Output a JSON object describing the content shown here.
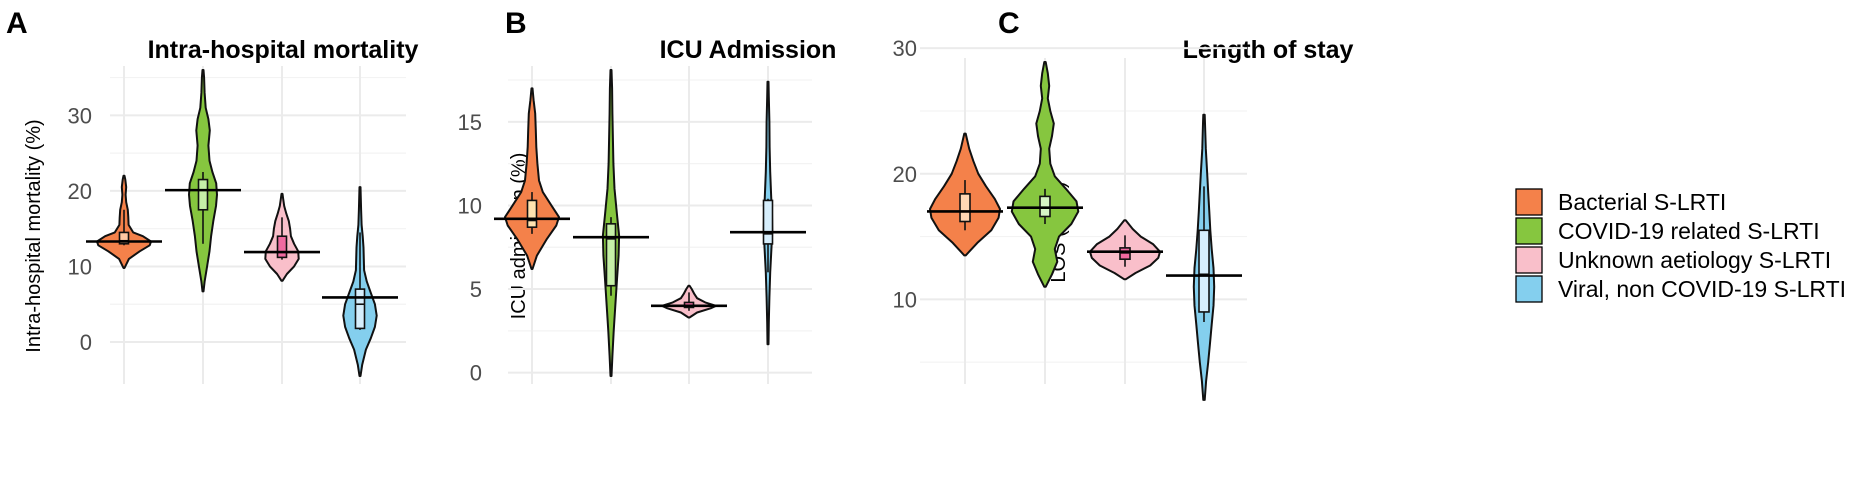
{
  "legend": {
    "items": [
      {
        "label": "Bacterial S-LRTI",
        "color": "#f4814a"
      },
      {
        "label": "COVID-19 related S-LRTI",
        "color": "#86c63f"
      },
      {
        "label": "Unknown aetiology S-LRTI",
        "color": "#f9bfca"
      },
      {
        "label": "Viral, non COVID-19 S-LRTI",
        "color": "#84cfee"
      }
    ]
  },
  "chart_data": [
    {
      "type": "violin",
      "panel_letter": "A",
      "title": "Intra-hospital mortality",
      "xlabel": "",
      "ylabel": "Intra-hospital mortality (%)",
      "ylim": [
        -4.5,
        36
      ],
      "yticks": [
        0,
        10,
        20,
        30
      ],
      "grid": true,
      "series": [
        {
          "name": "Bacterial S-LRTI",
          "color": "#f4814a",
          "inner_color": "#ffc9a3",
          "min": 9.8,
          "max": 22,
          "q1": 13.0,
          "median": 13.4,
          "q3": 14.5,
          "mean": 13.3,
          "whisker": [
            12.8,
            17.5
          ],
          "density": [
            [
              9.8,
              0.02
            ],
            [
              11,
              0.18
            ],
            [
              12,
              0.58
            ],
            [
              12.8,
              0.95
            ],
            [
              13.3,
              1.0
            ],
            [
              14,
              0.7
            ],
            [
              14.5,
              0.34
            ],
            [
              15.5,
              0.17
            ],
            [
              16.5,
              0.16
            ],
            [
              17.5,
              0.14
            ],
            [
              18.5,
              0.08
            ],
            [
              19.5,
              0.06
            ],
            [
              20.5,
              0.08
            ],
            [
              21.5,
              0.05
            ],
            [
              22,
              0.02
            ]
          ]
        },
        {
          "name": "COVID-19 related S-LRTI",
          "color": "#86c63f",
          "inner_color": "#c6f0a8",
          "min": 6.7,
          "max": 36,
          "q1": 17.5,
          "median": 20.1,
          "q3": 21.5,
          "mean": 20.1,
          "whisker": [
            13,
            22.5
          ],
          "density": [
            [
              6.7,
              0.02
            ],
            [
              8,
              0.06
            ],
            [
              10,
              0.15
            ],
            [
              12,
              0.24
            ],
            [
              14,
              0.3
            ],
            [
              16,
              0.38
            ],
            [
              18,
              0.48
            ],
            [
              19.5,
              0.52
            ],
            [
              21,
              0.49
            ],
            [
              22.5,
              0.35
            ],
            [
              24,
              0.24
            ],
            [
              26,
              0.2
            ],
            [
              28,
              0.25
            ],
            [
              29.5,
              0.2
            ],
            [
              31,
              0.1
            ],
            [
              33,
              0.06
            ],
            [
              35,
              0.04
            ],
            [
              36,
              0.02
            ]
          ]
        },
        {
          "name": "Unknown aetiology S-LRTI",
          "color": "#f9bfca",
          "inner_color": "#f06aa0",
          "min": 8.1,
          "max": 19.6,
          "q1": 11.2,
          "median": 11.9,
          "q3": 14.0,
          "mean": 11.9,
          "whisker": [
            10.9,
            16.5
          ],
          "density": [
            [
              8.1,
              0.02
            ],
            [
              9,
              0.18
            ],
            [
              10,
              0.45
            ],
            [
              11,
              0.62
            ],
            [
              12,
              0.6
            ],
            [
              13,
              0.45
            ],
            [
              14,
              0.33
            ],
            [
              15,
              0.3
            ],
            [
              16,
              0.25
            ],
            [
              17,
              0.16
            ],
            [
              18,
              0.08
            ],
            [
              19,
              0.04
            ],
            [
              19.6,
              0.02
            ]
          ]
        },
        {
          "name": "Viral, non COVID-19 S-LRTI",
          "color": "#84cfee",
          "inner_color": "#d6eefc",
          "min": -4.5,
          "max": 20.5,
          "q1": 1.8,
          "median": 5.0,
          "q3": 7.0,
          "mean": 5.9,
          "whisker": [
            1.6,
            14.5
          ],
          "density": [
            [
              -4.5,
              0.02
            ],
            [
              -3,
              0.08
            ],
            [
              -1,
              0.22
            ],
            [
              0.5,
              0.4
            ],
            [
              2,
              0.55
            ],
            [
              3.5,
              0.62
            ],
            [
              5,
              0.55
            ],
            [
              6.5,
              0.4
            ],
            [
              8,
              0.25
            ],
            [
              9.5,
              0.15
            ],
            [
              11,
              0.14
            ],
            [
              12.5,
              0.13
            ],
            [
              14,
              0.1
            ],
            [
              15.5,
              0.06
            ],
            [
              17.5,
              0.04
            ],
            [
              19,
              0.03
            ],
            [
              20.5,
              0.02
            ]
          ]
        }
      ]
    },
    {
      "type": "violin",
      "panel_letter": "B",
      "title": "ICU Admission",
      "xlabel": "",
      "ylabel": "ICU admission (%)",
      "ylim": [
        -0.2,
        18.1
      ],
      "yticks": [
        0,
        5,
        10,
        15
      ],
      "grid": true,
      "series": [
        {
          "name": "Bacterial S-LRTI",
          "color": "#f4814a",
          "inner_color": "#ffe3b0",
          "min": 6.2,
          "max": 17.0,
          "q1": 8.7,
          "median": 9.1,
          "q3": 10.3,
          "mean": 9.2,
          "whisker": [
            8.3,
            10.8
          ],
          "density": [
            [
              6.2,
              0.02
            ],
            [
              7,
              0.18
            ],
            [
              8,
              0.55
            ],
            [
              8.8,
              0.9
            ],
            [
              9.3,
              1.0
            ],
            [
              10,
              0.72
            ],
            [
              10.8,
              0.4
            ],
            [
              11.5,
              0.26
            ],
            [
              12.5,
              0.2
            ],
            [
              13.5,
              0.16
            ],
            [
              14.5,
              0.14
            ],
            [
              15.5,
              0.12
            ],
            [
              16.3,
              0.06
            ],
            [
              17,
              0.02
            ]
          ]
        },
        {
          "name": "COVID-19 related S-LRTI",
          "color": "#86c63f",
          "inner_color": "#c6f0a8",
          "min": -0.2,
          "max": 18.1,
          "q1": 5.2,
          "median": 8.0,
          "q3": 8.9,
          "mean": 8.1,
          "whisker": [
            4.6,
            9.3
          ],
          "density": [
            [
              -0.2,
              0.02
            ],
            [
              1,
              0.05
            ],
            [
              2.5,
              0.1
            ],
            [
              4,
              0.16
            ],
            [
              5.5,
              0.22
            ],
            [
              7,
              0.28
            ],
            [
              8.2,
              0.3
            ],
            [
              9.5,
              0.22
            ],
            [
              11,
              0.13
            ],
            [
              12.5,
              0.09
            ],
            [
              14,
              0.07
            ],
            [
              15.5,
              0.05
            ],
            [
              17,
              0.04
            ],
            [
              18.1,
              0.02
            ]
          ]
        },
        {
          "name": "Unknown aetiology S-LRTI",
          "color": "#f9bfca",
          "inner_color": "#f06aa0",
          "min": 3.3,
          "max": 5.2,
          "q1": 3.9,
          "median": 4.0,
          "q3": 4.2,
          "mean": 4.0,
          "whisker": [
            3.7,
            4.8
          ],
          "density": [
            [
              3.3,
              0.02
            ],
            [
              3.6,
              0.3
            ],
            [
              3.85,
              0.8
            ],
            [
              4.0,
              1.0
            ],
            [
              4.2,
              0.6
            ],
            [
              4.45,
              0.3
            ],
            [
              4.7,
              0.2
            ],
            [
              5.0,
              0.1
            ],
            [
              5.2,
              0.02
            ]
          ]
        },
        {
          "name": "Viral, non COVID-19 S-LRTI",
          "color": "#84cfee",
          "inner_color": "#d6eefc",
          "min": 1.7,
          "max": 17.4,
          "q1": 7.7,
          "median": 8.3,
          "q3": 10.3,
          "mean": 8.4,
          "whisker": [
            6.0,
            10.4
          ],
          "density": [
            [
              1.7,
              0.02
            ],
            [
              3,
              0.03
            ],
            [
              4.5,
              0.05
            ],
            [
              6,
              0.08
            ],
            [
              7.5,
              0.13
            ],
            [
              8.5,
              0.16
            ],
            [
              9.5,
              0.15
            ],
            [
              10.5,
              0.12
            ],
            [
              12,
              0.08
            ],
            [
              13.5,
              0.06
            ],
            [
              15,
              0.05
            ],
            [
              16.5,
              0.03
            ],
            [
              17.4,
              0.02
            ]
          ]
        }
      ]
    },
    {
      "type": "violin",
      "panel_letter": "C",
      "title": "Length of stay",
      "xlabel": "",
      "ylabel": "LOS (days)",
      "ylim": [
        3.9,
        28.9
      ],
      "yticks": [
        10,
        20,
        30
      ],
      "grid": true,
      "series": [
        {
          "name": "Bacterial S-LRTI",
          "color": "#f4814a",
          "inner_color": "#ffd7b5",
          "min": 13.5,
          "max": 23.2,
          "q1": 16.2,
          "median": 17.0,
          "q3": 18.4,
          "mean": 17.0,
          "whisker": [
            15.5,
            19.5
          ],
          "density": [
            [
              13.5,
              0.02
            ],
            [
              14.5,
              0.35
            ],
            [
              15.5,
              0.75
            ],
            [
              16.5,
              0.96
            ],
            [
              17.2,
              1.0
            ],
            [
              18,
              0.85
            ],
            [
              19,
              0.6
            ],
            [
              20,
              0.38
            ],
            [
              21,
              0.24
            ],
            [
              22,
              0.12
            ],
            [
              23.2,
              0.02
            ]
          ]
        },
        {
          "name": "COVID-19 related S-LRTI",
          "color": "#86c63f",
          "inner_color": "#d6f5c5",
          "min": 11.0,
          "max": 28.9,
          "q1": 16.6,
          "median": 17.3,
          "q3": 18.2,
          "mean": 17.3,
          "whisker": [
            16.0,
            18.8
          ],
          "density": [
            [
              11,
              0.02
            ],
            [
              12,
              0.2
            ],
            [
              13,
              0.35
            ],
            [
              14,
              0.28
            ],
            [
              15,
              0.4
            ],
            [
              16,
              0.75
            ],
            [
              17,
              0.95
            ],
            [
              17.8,
              0.9
            ],
            [
              18.8,
              0.6
            ],
            [
              19.8,
              0.28
            ],
            [
              20.8,
              0.15
            ],
            [
              22,
              0.12
            ],
            [
              23,
              0.2
            ],
            [
              24,
              0.25
            ],
            [
              25,
              0.15
            ],
            [
              26,
              0.08
            ],
            [
              27,
              0.12
            ],
            [
              28,
              0.08
            ],
            [
              28.9,
              0.02
            ]
          ]
        },
        {
          "name": "Unknown aetiology S-LRTI",
          "color": "#f9bfca",
          "inner_color": "#f06aa0",
          "min": 11.6,
          "max": 16.3,
          "q1": 13.2,
          "median": 13.7,
          "q3": 14.1,
          "mean": 13.8,
          "whisker": [
            12.6,
            15.1
          ],
          "density": [
            [
              11.6,
              0.02
            ],
            [
              12.1,
              0.3
            ],
            [
              12.7,
              0.72
            ],
            [
              13.3,
              0.95
            ],
            [
              13.8,
              1.0
            ],
            [
              14.4,
              0.8
            ],
            [
              15.0,
              0.45
            ],
            [
              15.6,
              0.22
            ],
            [
              16.3,
              0.02
            ]
          ]
        },
        {
          "name": "Viral, non COVID-19 S-LRTI",
          "color": "#84cfee",
          "inner_color": "#d6eefc",
          "min": 2.0,
          "max": 24.7,
          "q1": 9.0,
          "median": 12.0,
          "q3": 15.5,
          "mean": 11.9,
          "whisker": [
            8.2,
            19.0
          ],
          "density": [
            [
              2,
              0.02
            ],
            [
              3.5,
              0.06
            ],
            [
              5,
              0.12
            ],
            [
              6.5,
              0.17
            ],
            [
              8,
              0.22
            ],
            [
              9.5,
              0.27
            ],
            [
              11,
              0.29
            ],
            [
              12.5,
              0.27
            ],
            [
              14,
              0.22
            ],
            [
              15.5,
              0.18
            ],
            [
              17,
              0.15
            ],
            [
              18.5,
              0.12
            ],
            [
              20,
              0.09
            ],
            [
              22,
              0.05
            ],
            [
              24,
              0.03
            ],
            [
              24.7,
              0.02
            ]
          ]
        }
      ]
    }
  ]
}
